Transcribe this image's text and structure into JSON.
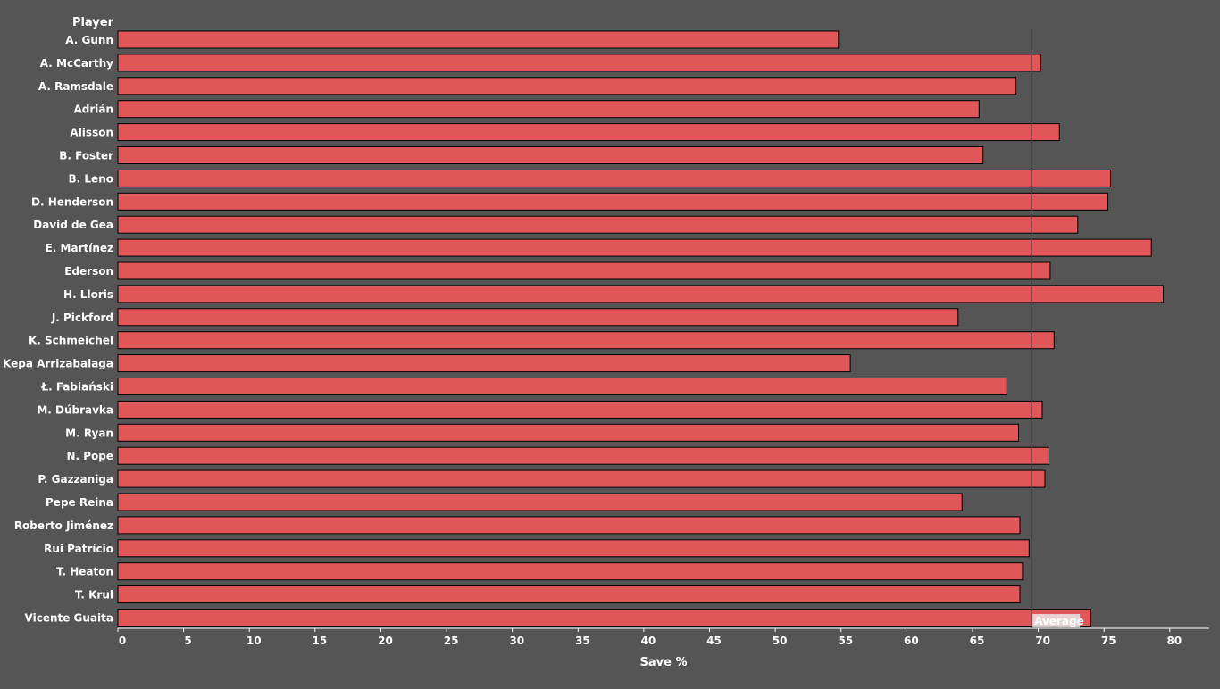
{
  "chart_data": {
    "type": "bar",
    "orientation": "horizontal",
    "ylabel": "Player",
    "xlabel": "Save %",
    "xlim": [
      0,
      83
    ],
    "xticks": [
      0,
      5,
      10,
      15,
      20,
      25,
      30,
      35,
      40,
      45,
      50,
      55,
      60,
      65,
      70,
      75,
      80
    ],
    "categories": [
      "A. Gunn",
      "A. McCarthy",
      "A. Ramsdale",
      "Adrián",
      "Alisson",
      "B. Foster",
      "B. Leno",
      "D. Henderson",
      "David de Gea",
      "E. Martínez",
      "Ederson",
      "H. Lloris",
      "J. Pickford",
      "K. Schmeichel",
      "Kepa Arrizabalaga",
      "Ł. Fabiański",
      "M. Dúbravka",
      "M. Ryan",
      "N. Pope",
      "P. Gazzaniga",
      "Pepe Reina",
      "Roberto Jiménez",
      "Rui Patrício",
      "T. Heaton",
      "T. Krul",
      "Vicente Guaita"
    ],
    "values": [
      54.8,
      70.2,
      68.3,
      65.5,
      71.6,
      65.8,
      75.5,
      75.3,
      73.0,
      78.6,
      70.9,
      79.5,
      63.9,
      71.2,
      55.7,
      67.6,
      70.3,
      68.5,
      70.8,
      70.5,
      64.2,
      68.6,
      69.3,
      68.8,
      68.6,
      74.0
    ],
    "average": 69.5,
    "average_label": "Average",
    "grid": false,
    "colors": {
      "background": "#555555",
      "bar_fill": "#e05659",
      "bar_stroke": "#000000",
      "text": "#ffffff",
      "axis": "#ffffff",
      "average_line": "#3a3a3a",
      "average_label_bg": "#e8e8e8"
    }
  }
}
